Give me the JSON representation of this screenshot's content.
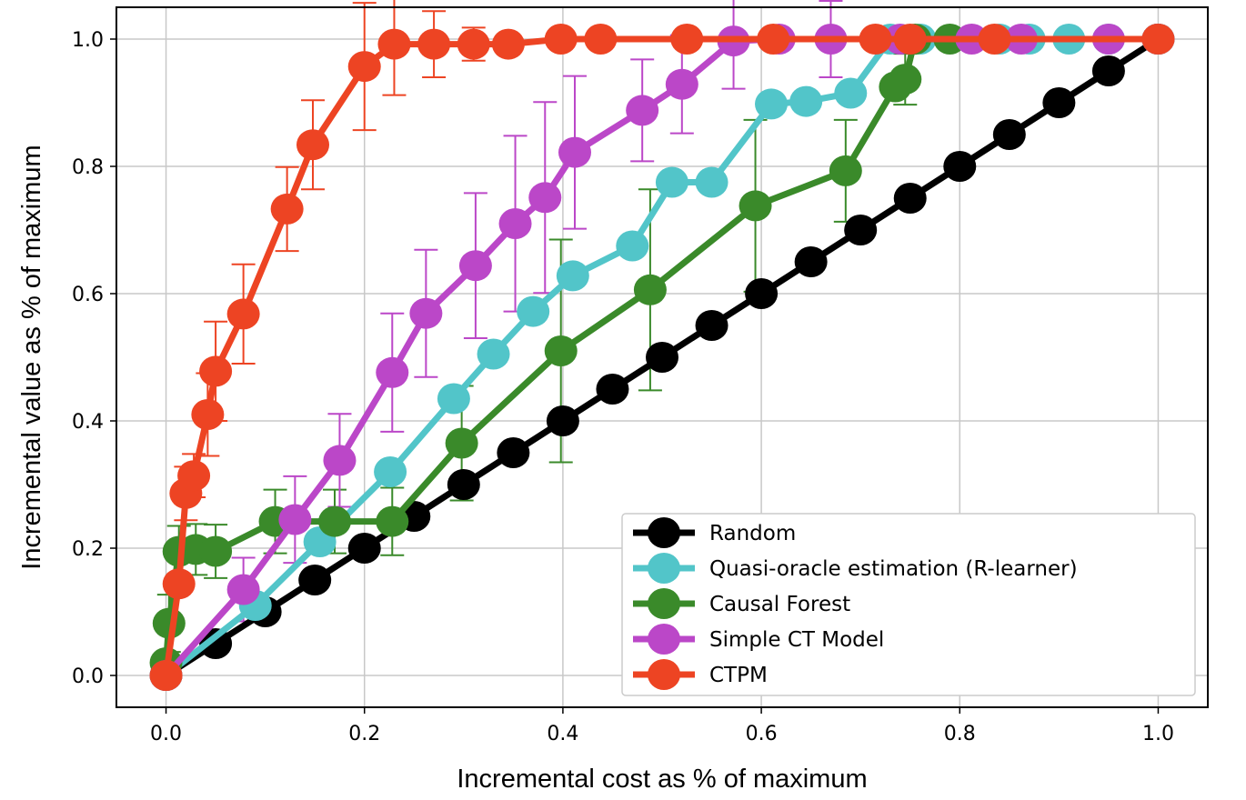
{
  "chart_data": {
    "type": "line",
    "title": "",
    "xlabel": "Incremental cost as % of maximum",
    "ylabel": "Incremental value as % of maximum",
    "xlim": [
      -0.05,
      1.05
    ],
    "ylim": [
      -0.05,
      1.05
    ],
    "xticks": [
      "0.0",
      "0.2",
      "0.4",
      "0.6",
      "0.8",
      "1.0"
    ],
    "yticks": [
      "0.0",
      "0.2",
      "0.4",
      "0.6",
      "0.8",
      "1.0"
    ],
    "grid": true,
    "legend_position": "lower-right",
    "series": [
      {
        "name": "Random",
        "color": "#000000",
        "points": [
          [
            0,
            0
          ],
          [
            0.05,
            0.05
          ],
          [
            0.1,
            0.1
          ],
          [
            0.15,
            0.15
          ],
          [
            0.2,
            0.2
          ],
          [
            0.25,
            0.25
          ],
          [
            0.3,
            0.3
          ],
          [
            0.35,
            0.35
          ],
          [
            0.4,
            0.4
          ],
          [
            0.45,
            0.45
          ],
          [
            0.5,
            0.5
          ],
          [
            0.55,
            0.55
          ],
          [
            0.6,
            0.6
          ],
          [
            0.65,
            0.65
          ],
          [
            0.7,
            0.7
          ],
          [
            0.75,
            0.75
          ],
          [
            0.8,
            0.8
          ],
          [
            0.85,
            0.85
          ],
          [
            0.9,
            0.9
          ],
          [
            0.95,
            0.95
          ],
          [
            1.0,
            1.0
          ]
        ],
        "errors": []
      },
      {
        "name": "Quasi-oracle estimation (R-learner)",
        "color": "#52c5c9",
        "points": [
          [
            0,
            0
          ],
          [
            0.09,
            0.11
          ],
          [
            0.155,
            0.21
          ],
          [
            0.226,
            0.32
          ],
          [
            0.29,
            0.435
          ],
          [
            0.33,
            0.505
          ],
          [
            0.37,
            0.572
          ],
          [
            0.41,
            0.628
          ],
          [
            0.47,
            0.675
          ],
          [
            0.51,
            0.775
          ],
          [
            0.55,
            0.775
          ],
          [
            0.61,
            0.898
          ],
          [
            0.645,
            0.902
          ],
          [
            0.69,
            0.915
          ],
          [
            0.73,
            1.0
          ],
          [
            0.76,
            1.0
          ],
          [
            0.84,
            1.0
          ],
          [
            0.87,
            1.0
          ],
          [
            0.91,
            1.0
          ],
          [
            0.95,
            1.0
          ],
          [
            1.0,
            1.0
          ]
        ],
        "errors": []
      },
      {
        "name": "Causal Forest",
        "color": "#3a8a2a",
        "points": [
          [
            0,
            0
          ],
          [
            0,
            0.02
          ],
          [
            0.003,
            0.082
          ],
          [
            0.013,
            0.195
          ],
          [
            0.03,
            0.198
          ],
          [
            0.05,
            0.195
          ],
          [
            0.11,
            0.242
          ],
          [
            0.17,
            0.242
          ],
          [
            0.228,
            0.242
          ],
          [
            0.298,
            0.365
          ],
          [
            0.398,
            0.51
          ],
          [
            0.488,
            0.606
          ],
          [
            0.594,
            0.738
          ],
          [
            0.685,
            0.793
          ],
          [
            0.735,
            0.925
          ],
          [
            0.745,
            0.937
          ],
          [
            0.755,
            1.0
          ],
          [
            0.79,
            1.0
          ],
          [
            1.0,
            1.0
          ]
        ],
        "errors": [
          [
            0.003,
            0.082,
            0.045
          ],
          [
            0.013,
            0.195,
            0.04
          ],
          [
            0.03,
            0.198,
            0.04
          ],
          [
            0.05,
            0.195,
            0.042
          ],
          [
            0.11,
            0.242,
            0.05
          ],
          [
            0.17,
            0.242,
            0.05
          ],
          [
            0.228,
            0.242,
            0.053
          ],
          [
            0.298,
            0.365,
            0.09
          ],
          [
            0.398,
            0.51,
            0.175
          ],
          [
            0.488,
            0.606,
            0.158
          ],
          [
            0.594,
            0.738,
            0.135
          ],
          [
            0.685,
            0.793,
            0.08
          ],
          [
            0.745,
            0.937,
            0.04
          ]
        ]
      },
      {
        "name": "Simple CT Model",
        "color": "#bb47c8",
        "points": [
          [
            0,
            0
          ],
          [
            0.078,
            0.135
          ],
          [
            0.13,
            0.245
          ],
          [
            0.175,
            0.338
          ],
          [
            0.228,
            0.476
          ],
          [
            0.262,
            0.569
          ],
          [
            0.312,
            0.644
          ],
          [
            0.352,
            0.71
          ],
          [
            0.382,
            0.751
          ],
          [
            0.412,
            0.822
          ],
          [
            0.48,
            0.888
          ],
          [
            0.52,
            0.929
          ],
          [
            0.572,
            0.997
          ],
          [
            0.618,
            1.0
          ],
          [
            0.67,
            1.0
          ],
          [
            0.74,
            1.0
          ],
          [
            0.812,
            1.0
          ],
          [
            0.862,
            1.0
          ],
          [
            0.95,
            1.0
          ],
          [
            1.0,
            1.0
          ]
        ],
        "errors": [
          [
            0.078,
            0.135,
            0.05
          ],
          [
            0.13,
            0.245,
            0.068
          ],
          [
            0.175,
            0.338,
            0.073
          ],
          [
            0.228,
            0.476,
            0.093
          ],
          [
            0.262,
            0.569,
            0.1
          ],
          [
            0.312,
            0.644,
            0.114
          ],
          [
            0.352,
            0.71,
            0.138
          ],
          [
            0.382,
            0.751,
            0.15
          ],
          [
            0.412,
            0.822,
            0.12
          ],
          [
            0.48,
            0.888,
            0.08
          ],
          [
            0.52,
            0.929,
            0.077
          ],
          [
            0.572,
            0.997,
            0.075
          ],
          [
            0.67,
            1.0,
            0.06
          ]
        ]
      },
      {
        "name": "CTPM",
        "color": "#ed4423",
        "points": [
          [
            0,
            0
          ],
          [
            0.013,
            0.144
          ],
          [
            0.02,
            0.286
          ],
          [
            0.028,
            0.314
          ],
          [
            0.042,
            0.41
          ],
          [
            0.05,
            0.478
          ],
          [
            0.078,
            0.568
          ],
          [
            0.122,
            0.733
          ],
          [
            0.148,
            0.834
          ],
          [
            0.2,
            0.957
          ],
          [
            0.23,
            0.992
          ],
          [
            0.27,
            0.992
          ],
          [
            0.31,
            0.992
          ],
          [
            0.345,
            0.992
          ],
          [
            0.398,
            1.0
          ],
          [
            0.438,
            1.0
          ],
          [
            0.525,
            1.0
          ],
          [
            0.612,
            1.0
          ],
          [
            0.715,
            1.0
          ],
          [
            0.75,
            1.0
          ],
          [
            0.835,
            1.0
          ],
          [
            1.0,
            1.0
          ]
        ],
        "errors": [
          [
            0.02,
            0.286,
            0.042
          ],
          [
            0.028,
            0.314,
            0.034
          ],
          [
            0.042,
            0.41,
            0.065
          ],
          [
            0.05,
            0.478,
            0.078
          ],
          [
            0.078,
            0.568,
            0.078
          ],
          [
            0.122,
            0.733,
            0.066
          ],
          [
            0.148,
            0.834,
            0.07
          ],
          [
            0.2,
            0.957,
            0.1
          ],
          [
            0.23,
            0.992,
            0.08
          ],
          [
            0.27,
            0.992,
            0.052
          ],
          [
            0.31,
            0.992,
            0.026
          ]
        ]
      }
    ]
  }
}
